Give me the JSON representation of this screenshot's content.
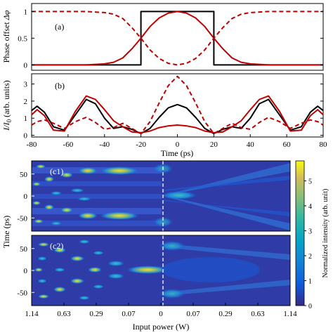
{
  "chart_data": [
    {
      "panel": "(a)",
      "type": "line",
      "ylabel": "Phase offset Δφ",
      "xlim": [
        -80,
        80
      ],
      "ylim": [
        -0.1,
        1.15
      ],
      "yticks": [
        "0",
        "0.5",
        "1"
      ],
      "series": [
        {
          "style": "black-solid",
          "x": [
            -80,
            -20,
            -20,
            20,
            20,
            80
          ],
          "y": [
            0,
            0,
            1,
            1,
            0,
            0
          ]
        },
        {
          "style": "red-solid",
          "x": [
            -80,
            -50,
            -40,
            -35,
            -30,
            -25,
            -20,
            -15,
            -10,
            -5,
            0,
            5,
            10,
            15,
            20,
            25,
            30,
            35,
            40,
            50,
            80
          ],
          "y": [
            0,
            0,
            0.02,
            0.05,
            0.13,
            0.3,
            0.5,
            0.72,
            0.88,
            0.97,
            1,
            0.97,
            0.88,
            0.72,
            0.5,
            0.3,
            0.13,
            0.05,
            0.02,
            0,
            0
          ]
        },
        {
          "style": "red-dashed",
          "x": [
            -80,
            -50,
            -40,
            -35,
            -30,
            -25,
            -20,
            -15,
            -10,
            -5,
            0,
            5,
            10,
            15,
            20,
            25,
            30,
            35,
            40,
            50,
            80
          ],
          "y": [
            1,
            1,
            0.98,
            0.95,
            0.87,
            0.7,
            0.5,
            0.28,
            0.12,
            0.03,
            0,
            0.03,
            0.12,
            0.28,
            0.5,
            0.7,
            0.87,
            0.95,
            0.98,
            1,
            1
          ]
        }
      ]
    },
    {
      "panel": "(b)",
      "type": "line",
      "ylabel": "I/I0 (arb. units)",
      "xlabel": "Time (ps)",
      "xlim": [
        -80,
        80
      ],
      "ylim": [
        -0.1,
        3.6
      ],
      "xticks": [
        "-80",
        "-60",
        "-40",
        "-20",
        "0",
        "20",
        "40",
        "60",
        "80"
      ],
      "yticks": [
        "0",
        "1",
        "2",
        "3"
      ],
      "series": [
        {
          "style": "black-solid",
          "x": [
            -80,
            -77,
            -73,
            -68,
            -62,
            -56,
            -50,
            -45,
            -40,
            -35,
            -30,
            -25,
            -20,
            -15,
            -10,
            -5,
            0,
            5,
            10,
            15,
            20,
            25,
            30,
            35,
            40,
            45,
            50,
            56,
            62,
            68,
            73,
            77,
            80
          ],
          "y": [
            1.45,
            1.7,
            1.35,
            0.5,
            0.3,
            1.2,
            2.1,
            1.85,
            1.0,
            0.4,
            0.5,
            0.35,
            0.1,
            0.4,
            1.05,
            1.6,
            1.8,
            1.6,
            1.05,
            0.4,
            0.1,
            0.35,
            0.5,
            0.4,
            1.0,
            1.85,
            2.1,
            1.2,
            0.3,
            0.5,
            1.35,
            1.7,
            1.45
          ]
        },
        {
          "style": "red-solid",
          "x": [
            -80,
            -77,
            -73,
            -68,
            -62,
            -56,
            -50,
            -45,
            -40,
            -35,
            -30,
            -25,
            -20,
            -15,
            -10,
            -5,
            0,
            5,
            10,
            15,
            20,
            25,
            30,
            35,
            40,
            45,
            50,
            56,
            62,
            68,
            73,
            77,
            80
          ],
          "y": [
            1.2,
            1.5,
            1.15,
            0.3,
            0.25,
            1.4,
            2.3,
            2.1,
            1.5,
            0.85,
            0.5,
            0.2,
            0.15,
            0.25,
            0.45,
            0.55,
            0.6,
            0.55,
            0.45,
            0.25,
            0.15,
            0.2,
            0.5,
            0.85,
            1.5,
            2.1,
            2.3,
            1.4,
            0.25,
            0.3,
            1.15,
            1.5,
            1.2
          ]
        },
        {
          "style": "red-dashed",
          "x": [
            -80,
            -77,
            -73,
            -68,
            -62,
            -56,
            -50,
            -45,
            -40,
            -35,
            -30,
            -25,
            -20,
            -15,
            -10,
            -5,
            0,
            5,
            10,
            15,
            20,
            25,
            30,
            35,
            40,
            45,
            50,
            56,
            62,
            68,
            73,
            77,
            80
          ],
          "y": [
            0.6,
            0.8,
            0.9,
            0.7,
            0.4,
            0.8,
            1.05,
            0.75,
            0.35,
            0.45,
            0.7,
            0.4,
            0.1,
            0.8,
            1.9,
            2.9,
            3.45,
            2.9,
            1.9,
            0.8,
            0.1,
            0.4,
            0.7,
            0.45,
            0.35,
            0.75,
            1.05,
            0.8,
            0.4,
            0.7,
            0.9,
            0.8,
            0.6
          ]
        }
      ]
    },
    {
      "panel": "(c1)",
      "type": "heatmap",
      "ylabel": "Time (ps)",
      "ylim": [
        -80,
        80
      ],
      "yticks": [
        "50",
        "0",
        "-50"
      ]
    },
    {
      "panel": "(c2)",
      "type": "heatmap",
      "ylabel": "Time (ps)",
      "xlabel": "Input power (W)",
      "ylim": [
        -80,
        80
      ],
      "xticks": [
        "1.14",
        "0.63",
        "0.29",
        "0.07",
        "0",
        "0.07",
        "0.29",
        "0.63",
        "1.14"
      ],
      "yticks": [
        "50",
        "0",
        "-50"
      ],
      "colorbar": {
        "label": "Normalized intensity (arb. unit)",
        "range": [
          0,
          5.8
        ],
        "ticks": [
          "0",
          "1",
          "2",
          "3",
          "4",
          "5"
        ]
      }
    }
  ],
  "labels": {
    "a_panel": "(a)",
    "b_panel": "(b)",
    "c1_panel": "(c1)",
    "c2_panel": "(c2)",
    "a_ylabel": "Phase offset",
    "a_ylabel_sym": "Δφ",
    "b_ylabel_main": "I/I",
    "b_ylabel_sub": "0",
    "b_ylabel_unit": "(arb. units)",
    "time_xlabel": "Time (ps)",
    "c_ylabel_top": "Time (ps)",
    "c_ylabel_bot": "Time (ps)",
    "power_xlabel": "Input power (W)",
    "cb_label": "Normalized intensity (arb. unit)"
  },
  "colors": {
    "red": "#c00000",
    "black": "#000000",
    "heat_low": "#352a87",
    "heat_high": "#f9fb0e"
  }
}
